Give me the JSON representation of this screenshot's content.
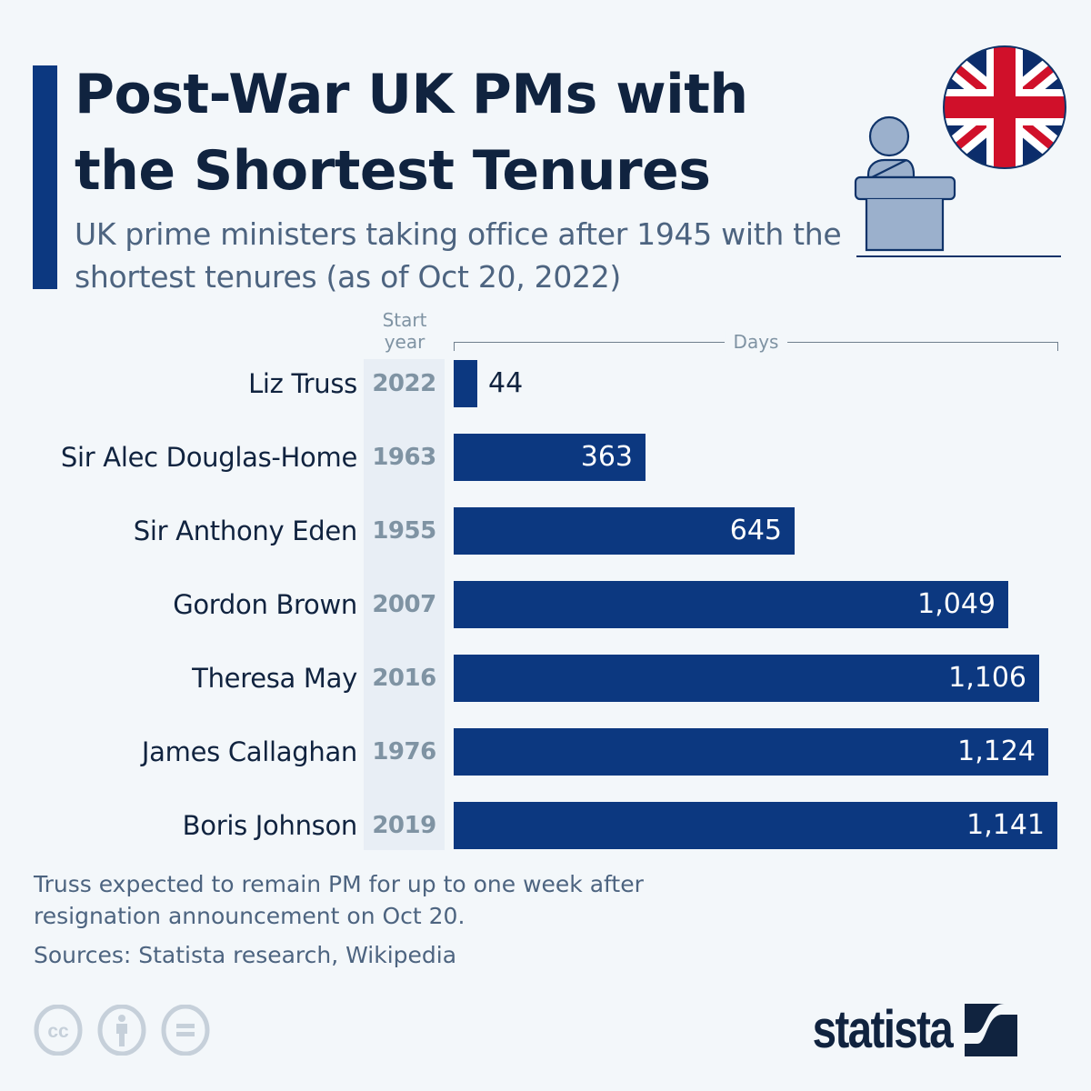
{
  "header": {
    "title": "Post-War UK PMs with the Shortest Tenures",
    "subtitle": "UK prime ministers taking office after 1945 with the shortest tenures (as of Oct 20, 2022)"
  },
  "illustration": {
    "icons": [
      "podium-speaker-icon",
      "union-jack-flag-icon"
    ],
    "colors": {
      "flag_blue": "#0c2d6b",
      "flag_red": "#d0102a",
      "figure_fill": "#9bb0cc",
      "outline": "#0f3369"
    }
  },
  "table": {
    "start_year_header_line1": "Start",
    "start_year_header_line2": "year",
    "days_header": "Days"
  },
  "rows": [
    {
      "name": "Liz Truss",
      "start_year": "2022",
      "days": 44,
      "label": "44"
    },
    {
      "name": "Sir Alec Douglas-Home",
      "start_year": "1963",
      "days": 363,
      "label": "363"
    },
    {
      "name": "Sir Anthony Eden",
      "start_year": "1955",
      "days": 645,
      "label": "645"
    },
    {
      "name": "Gordon Brown",
      "start_year": "2007",
      "days": 1049,
      "label": "1,049"
    },
    {
      "name": "Theresa May",
      "start_year": "2016",
      "days": 1106,
      "label": "1,106"
    },
    {
      "name": "James Callaghan",
      "start_year": "1976",
      "days": 1124,
      "label": "1,124"
    },
    {
      "name": "Boris Johnson",
      "start_year": "2019",
      "days": 1141,
      "label": "1,141"
    }
  ],
  "footer": {
    "note": "Truss expected to remain PM for up to one week after resignation announcement on Oct 20.",
    "source": "Sources: Statista research, Wikipedia",
    "license_icons": [
      "cc-icon",
      "attribution-icon",
      "no-derivatives-icon"
    ],
    "brand": "statista"
  },
  "colors": {
    "background": "#f3f7fa",
    "bar": "#0c3880",
    "accent": "#0c3880",
    "title": "#10233f",
    "subtitle": "#4d6480",
    "muted": "#7f93a3",
    "year_band": "#e8eef5"
  },
  "chart_data": {
    "type": "bar",
    "orientation": "horizontal",
    "title": "Post-War UK PMs with the Shortest Tenures",
    "subtitle": "UK prime ministers taking office after 1945 with the shortest tenures (as of Oct 20, 2022)",
    "categories": [
      "Liz Truss",
      "Sir Alec Douglas-Home",
      "Sir Anthony Eden",
      "Gordon Brown",
      "Theresa May",
      "James Callaghan",
      "Boris Johnson"
    ],
    "start_years": [
      2022,
      1963,
      1955,
      2007,
      2016,
      1976,
      2019
    ],
    "values": [
      44,
      363,
      645,
      1049,
      1106,
      1124,
      1141
    ],
    "xlabel": "Days",
    "ylabel": "",
    "xlim": [
      0,
      1141
    ],
    "grid": false,
    "legend": null,
    "data_labels": true,
    "annotations": [
      "Truss expected to remain PM for up to one week after resignation announcement on Oct 20."
    ],
    "source": "Sources: Statista research, Wikipedia"
  }
}
